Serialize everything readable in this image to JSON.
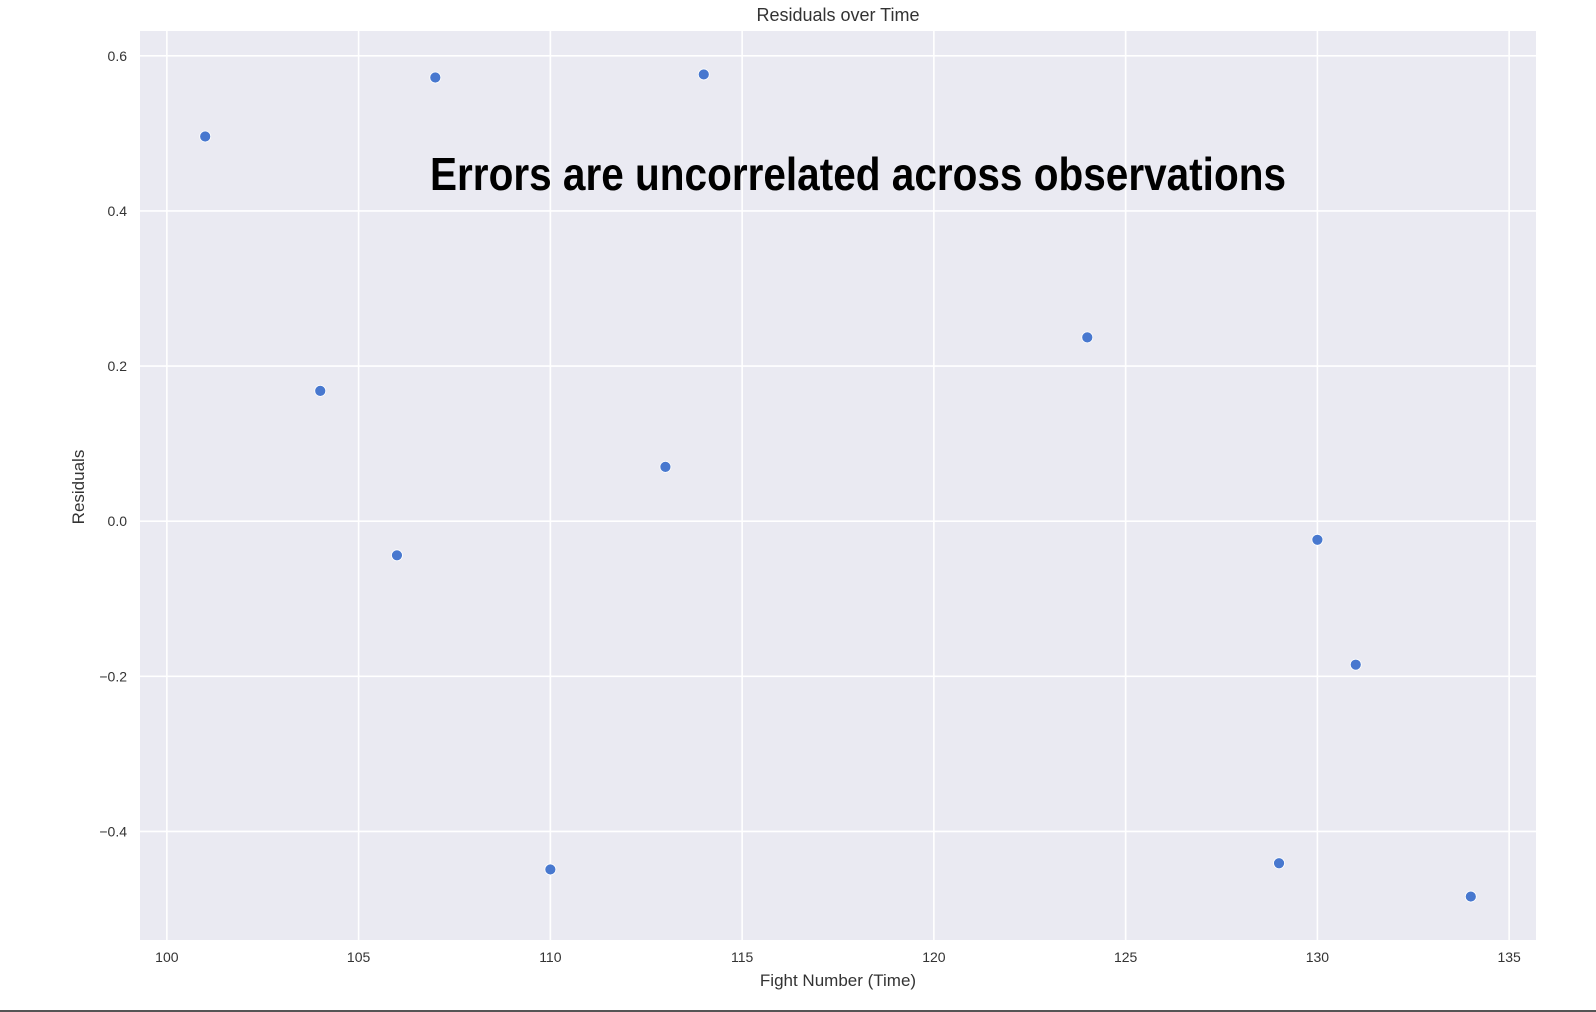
{
  "chart_data": {
    "type": "scatter",
    "title": "Residuals over Time",
    "xlabel": "Fight Number (Time)",
    "ylabel": "Residuals",
    "xlim": [
      99.3,
      135.7
    ],
    "ylim": [
      -0.54,
      0.632
    ],
    "xticks": [
      100,
      105,
      110,
      115,
      120,
      125,
      130,
      135
    ],
    "yticks": [
      -0.4,
      -0.2,
      0.0,
      0.2,
      0.4,
      0.6
    ],
    "xtick_labels": [
      "100",
      "105",
      "110",
      "115",
      "120",
      "125",
      "130",
      "135"
    ],
    "ytick_labels": [
      "−0.4",
      "−0.2",
      "0.0",
      "0.2",
      "0.4",
      "0.6"
    ],
    "grid": true,
    "series": [
      {
        "x": [
          101,
          104,
          106,
          107,
          110,
          113,
          114,
          124,
          129,
          130,
          131,
          134
        ],
        "y": [
          0.496,
          0.168,
          -0.044,
          0.572,
          -0.449,
          0.07,
          0.576,
          0.237,
          -0.441,
          -0.024,
          -0.185,
          -0.484
        ],
        "color": "#4878cf"
      }
    ],
    "annotations": [
      {
        "text": "Errors are uncorrelated across observations"
      }
    ],
    "plot_background": "#eaeaf2",
    "gridline_color": "#ffffff"
  }
}
